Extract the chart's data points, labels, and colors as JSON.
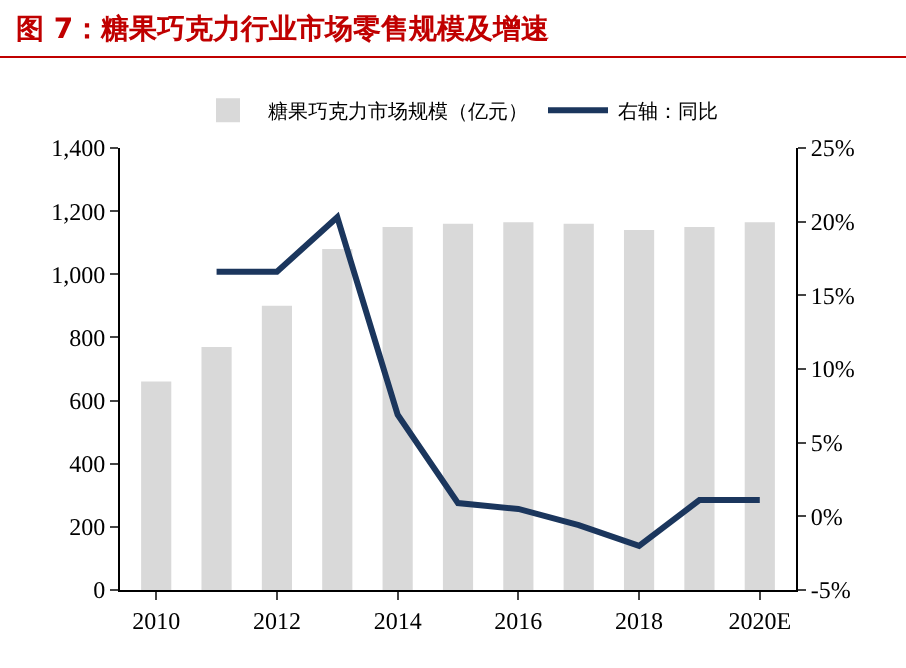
{
  "chart_data": {
    "type": "bar",
    "title": "图 7：糖果巧克力行业市场零售规模及增速",
    "categories": [
      "2010",
      null,
      "2012",
      null,
      "2014",
      null,
      "2016",
      null,
      "2018",
      null,
      "2020E"
    ],
    "series": [
      {
        "name": "糖果巧克力市场规模（亿元）",
        "color": "#d9d9d9",
        "values": [
          660,
          770,
          900,
          1080,
          1150,
          1160,
          1165,
          1160,
          1140,
          1150,
          1165
        ]
      },
      {
        "name": "右轴：同比",
        "type": "line",
        "axis": "y2",
        "color": "#1b365d",
        "values": [
          null,
          16.6,
          16.6,
          20.3,
          6.9,
          0.9,
          0.5,
          -0.6,
          -2.0,
          1.1,
          1.1
        ]
      }
    ],
    "ylim": [
      0,
      1400
    ],
    "yticks": [
      {
        "value": 0,
        "label": "0"
      },
      {
        "value": 200,
        "label": "200"
      },
      {
        "value": 400,
        "label": "400"
      },
      {
        "value": 600,
        "label": "600"
      },
      {
        "value": 800,
        "label": "800"
      },
      {
        "value": 1000,
        "label": "1,000"
      },
      {
        "value": 1200,
        "label": "1,200"
      },
      {
        "value": 1400,
        "label": "1,400"
      }
    ],
    "y2lim": [
      -5,
      25
    ],
    "y2ticks": [
      {
        "value": -5,
        "label": "-5%"
      },
      {
        "value": 0,
        "label": "0%"
      },
      {
        "value": 5,
        "label": "5%"
      },
      {
        "value": 10,
        "label": "10%"
      },
      {
        "value": 15,
        "label": "15%"
      },
      {
        "value": 20,
        "label": "20%"
      },
      {
        "value": 25,
        "label": "25%"
      }
    ],
    "grid": false,
    "legend": "top",
    "marker": "none",
    "line_style": "solid"
  }
}
